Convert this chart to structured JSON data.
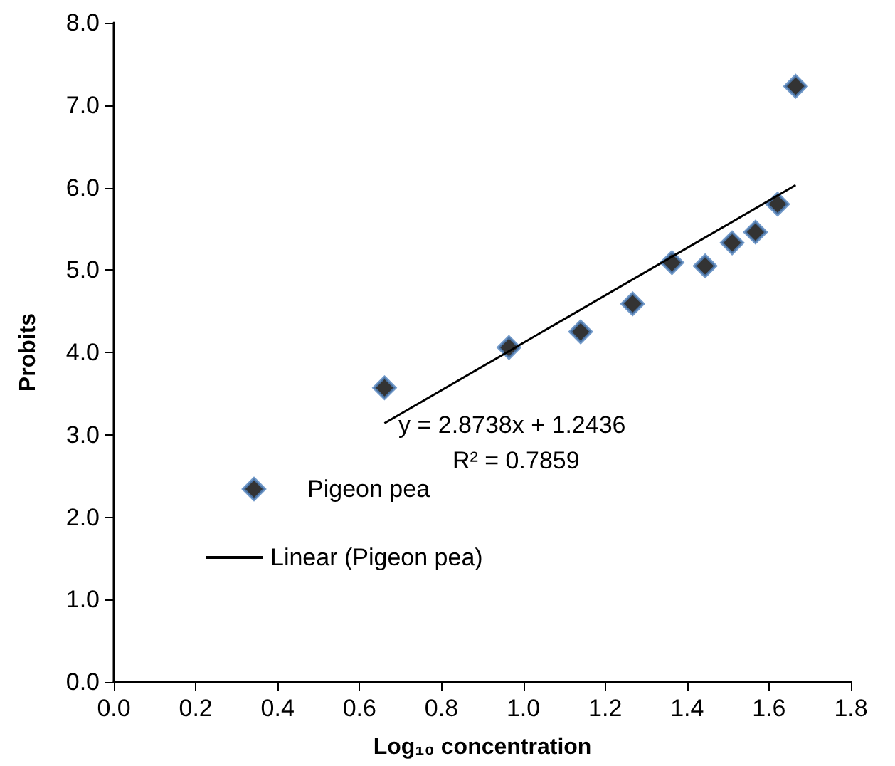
{
  "chart_data": {
    "type": "scatter",
    "xlabel": "Log₁₀ concentration",
    "ylabel": "Probits",
    "series": [
      {
        "name": "Pigeon pea",
        "color": "#000000",
        "x": [
          0.661,
          0.965,
          1.14,
          1.267,
          1.363,
          1.444,
          1.51,
          1.567,
          1.621,
          1.665
        ],
        "values": [
          3.57,
          4.06,
          4.25,
          4.59,
          5.09,
          5.05,
          5.33,
          5.46,
          5.8,
          7.23
        ],
        "marker": "diamond"
      },
      {
        "name": "Linear (Pigeon pea)",
        "type": "line",
        "color": "#000000",
        "x": [
          0.661,
          1.665
        ],
        "values": [
          3.14,
          6.03
        ],
        "marker": "none",
        "line_style": "solid"
      }
    ],
    "xlim": [
      0,
      1.8
    ],
    "ylim": [
      0,
      8
    ],
    "xticks": [
      {
        "value": 0,
        "label": "0.0"
      },
      {
        "value": 0.2,
        "label": "0.2"
      },
      {
        "value": 0.4,
        "label": "0.4"
      },
      {
        "value": 0.6,
        "label": "0.6"
      },
      {
        "value": 0.8,
        "label": "0.8"
      },
      {
        "value": 1,
        "label": "1.0"
      },
      {
        "value": 1.2,
        "label": "1.2"
      },
      {
        "value": 1.4,
        "label": "1.4"
      },
      {
        "value": 1.6,
        "label": "1.6"
      },
      {
        "value": 1.8,
        "label": "1.8"
      }
    ],
    "yticks": [
      {
        "value": 0,
        "label": "0.0"
      },
      {
        "value": 1,
        "label": "1.0"
      },
      {
        "value": 2,
        "label": "2.0"
      },
      {
        "value": 3,
        "label": "3.0"
      },
      {
        "value": 4,
        "label": "4.0"
      },
      {
        "value": 5,
        "label": "5.0"
      },
      {
        "value": 6,
        "label": "6.0"
      },
      {
        "value": 7,
        "label": "7.0"
      },
      {
        "value": 8,
        "label": "8.0"
      }
    ],
    "annotations": [
      "y = 2.8738x + 1.2436",
      "R² = 0.7859"
    ],
    "grid": false,
    "legend": "bottom left"
  }
}
